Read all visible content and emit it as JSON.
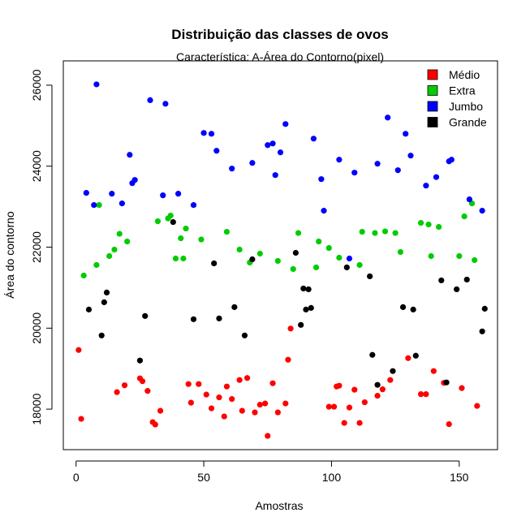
{
  "chart_data": {
    "type": "scatter",
    "title": "Distribuição das classes de ovos",
    "subtitle": "Característica: A-Área do Contorno(pixel)",
    "xlabel": "Amostras",
    "ylabel": "Área do contorno",
    "xlim": [
      -5,
      165
    ],
    "ylim": [
      17000,
      26600
    ],
    "x_ticks": [
      0,
      50,
      100,
      150
    ],
    "y_ticks": [
      18000,
      20000,
      22000,
      24000,
      26000
    ],
    "legend_position": "top-right",
    "grid": false,
    "series": [
      {
        "name": "Médio",
        "color": "#ff0000",
        "points": [
          [
            1,
            19460
          ],
          [
            2,
            17760
          ],
          [
            16,
            18420
          ],
          [
            19,
            18590
          ],
          [
            25,
            18760
          ],
          [
            26,
            18690
          ],
          [
            28,
            18450
          ],
          [
            30,
            17680
          ],
          [
            31,
            17620
          ],
          [
            33,
            17960
          ],
          [
            44,
            18620
          ],
          [
            45,
            18160
          ],
          [
            48,
            18620
          ],
          [
            51,
            18360
          ],
          [
            53,
            18020
          ],
          [
            56,
            18290
          ],
          [
            58,
            17820
          ],
          [
            59,
            18560
          ],
          [
            61,
            18250
          ],
          [
            64,
            18720
          ],
          [
            65,
            17960
          ],
          [
            67,
            18770
          ],
          [
            70,
            17920
          ],
          [
            72,
            18110
          ],
          [
            74,
            18140
          ],
          [
            75,
            17340
          ],
          [
            77,
            18640
          ],
          [
            79,
            17920
          ],
          [
            82,
            18140
          ],
          [
            83,
            19220
          ],
          [
            84,
            19990
          ],
          [
            99,
            18060
          ],
          [
            101,
            18060
          ],
          [
            102,
            18560
          ],
          [
            103,
            18580
          ],
          [
            105,
            17660
          ],
          [
            107,
            18040
          ],
          [
            109,
            18480
          ],
          [
            111,
            17660
          ],
          [
            113,
            18170
          ],
          [
            118,
            18330
          ],
          [
            120,
            18490
          ],
          [
            123,
            18720
          ],
          [
            130,
            19260
          ],
          [
            135,
            18370
          ],
          [
            137,
            18370
          ],
          [
            140,
            18940
          ],
          [
            144,
            18650
          ],
          [
            146,
            17630
          ],
          [
            151,
            18520
          ],
          [
            157,
            18080
          ]
        ]
      },
      {
        "name": "Extra",
        "color": "#00cc00",
        "points": [
          [
            3,
            21300
          ],
          [
            8,
            21560
          ],
          [
            9,
            23040
          ],
          [
            13,
            21780
          ],
          [
            15,
            21940
          ],
          [
            17,
            22330
          ],
          [
            20,
            22140
          ],
          [
            32,
            22640
          ],
          [
            36,
            22710
          ],
          [
            37,
            22780
          ],
          [
            39,
            21720
          ],
          [
            41,
            22220
          ],
          [
            42,
            21720
          ],
          [
            43,
            22460
          ],
          [
            49,
            22190
          ],
          [
            59,
            22380
          ],
          [
            64,
            21940
          ],
          [
            68,
            21620
          ],
          [
            72,
            21840
          ],
          [
            79,
            21660
          ],
          [
            85,
            21460
          ],
          [
            87,
            22350
          ],
          [
            94,
            21500
          ],
          [
            95,
            22140
          ],
          [
            99,
            21980
          ],
          [
            103,
            21740
          ],
          [
            111,
            21560
          ],
          [
            112,
            22380
          ],
          [
            117,
            22350
          ],
          [
            121,
            22390
          ],
          [
            125,
            22350
          ],
          [
            127,
            21880
          ],
          [
            135,
            22600
          ],
          [
            138,
            22560
          ],
          [
            139,
            21780
          ],
          [
            142,
            22500
          ],
          [
            150,
            21780
          ],
          [
            152,
            22760
          ],
          [
            155,
            23080
          ],
          [
            156,
            21680
          ]
        ]
      },
      {
        "name": "Jumbo",
        "color": "#0000ff",
        "points": [
          [
            4,
            23340
          ],
          [
            7,
            23040
          ],
          [
            8,
            26020
          ],
          [
            14,
            23320
          ],
          [
            18,
            23080
          ],
          [
            21,
            24280
          ],
          [
            22,
            23580
          ],
          [
            23,
            23660
          ],
          [
            29,
            25630
          ],
          [
            34,
            23280
          ],
          [
            35,
            25540
          ],
          [
            40,
            23320
          ],
          [
            46,
            23040
          ],
          [
            50,
            24820
          ],
          [
            53,
            24800
          ],
          [
            55,
            24380
          ],
          [
            61,
            23940
          ],
          [
            69,
            24080
          ],
          [
            75,
            24520
          ],
          [
            77,
            24560
          ],
          [
            78,
            23780
          ],
          [
            80,
            24340
          ],
          [
            82,
            25040
          ],
          [
            93,
            24680
          ],
          [
            96,
            23680
          ],
          [
            97,
            22900
          ],
          [
            103,
            24160
          ],
          [
            107,
            21720
          ],
          [
            109,
            23840
          ],
          [
            118,
            24060
          ],
          [
            122,
            25200
          ],
          [
            126,
            23900
          ],
          [
            129,
            24800
          ],
          [
            131,
            24260
          ],
          [
            137,
            23520
          ],
          [
            141,
            23730
          ],
          [
            146,
            24120
          ],
          [
            147,
            24160
          ],
          [
            154,
            23180
          ],
          [
            159,
            22900
          ]
        ]
      },
      {
        "name": "Grande",
        "color": "#000000",
        "points": [
          [
            5,
            20460
          ],
          [
            10,
            19820
          ],
          [
            11,
            20640
          ],
          [
            12,
            20880
          ],
          [
            25,
            19200
          ],
          [
            27,
            20300
          ],
          [
            38,
            22620
          ],
          [
            46,
            20220
          ],
          [
            54,
            21600
          ],
          [
            56,
            20240
          ],
          [
            62,
            20520
          ],
          [
            66,
            19820
          ],
          [
            69,
            21700
          ],
          [
            86,
            21860
          ],
          [
            88,
            20080
          ],
          [
            89,
            20980
          ],
          [
            90,
            20460
          ],
          [
            91,
            20960
          ],
          [
            92,
            20500
          ],
          [
            106,
            21500
          ],
          [
            115,
            21280
          ],
          [
            116,
            19340
          ],
          [
            118,
            18600
          ],
          [
            124,
            18940
          ],
          [
            128,
            20520
          ],
          [
            132,
            20460
          ],
          [
            133,
            19320
          ],
          [
            143,
            21180
          ],
          [
            145,
            18660
          ],
          [
            149,
            20960
          ],
          [
            153,
            21200
          ],
          [
            159,
            19920
          ],
          [
            160,
            20480
          ]
        ]
      }
    ]
  }
}
